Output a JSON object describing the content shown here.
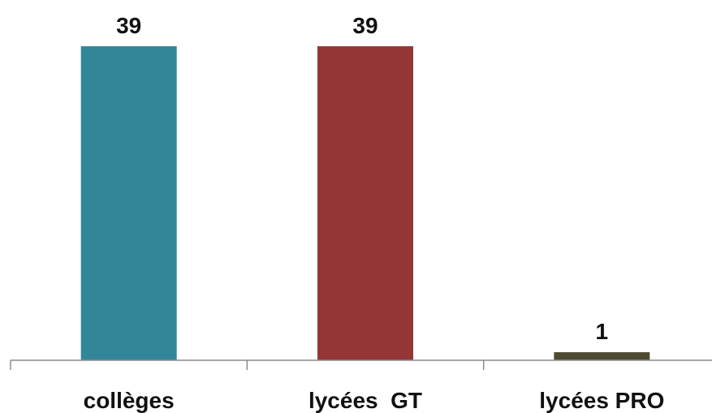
{
  "chart_data": {
    "type": "bar",
    "categories": [
      "collèges",
      "lycées  GT",
      "lycées PRO"
    ],
    "values": [
      39,
      39,
      1
    ],
    "data_labels": [
      "39",
      "39",
      "1"
    ],
    "colors": [
      "#338699",
      "#943636",
      "#4d4a30"
    ],
    "title": "",
    "xlabel": "",
    "ylabel": "",
    "ylim": [
      0,
      39
    ],
    "grid": false,
    "legend": "none"
  }
}
